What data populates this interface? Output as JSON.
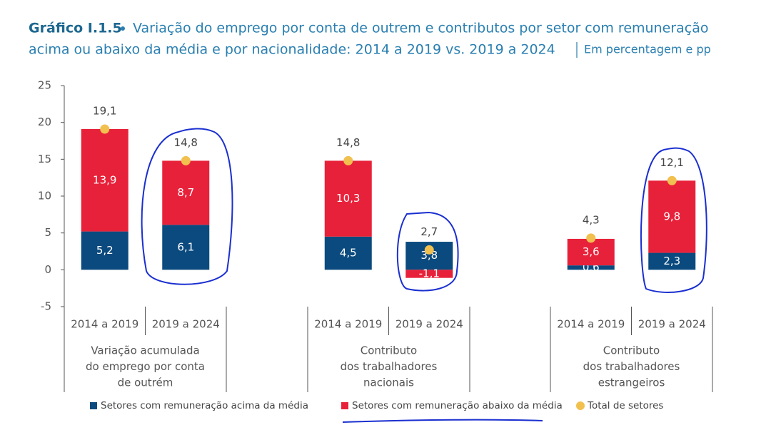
{
  "chart_data": {
    "type": "bar",
    "stacked": true,
    "title_label": "Gráfico I.1.5",
    "title": [
      "Variação do emprego por conta de outrem e contributos por setor com remuneração",
      "acima ou abaixo da média e por nacionalidade: 2014 a 2019 vs. 2019 a 2024"
    ],
    "unit": "Em percentagem e pp",
    "categories": [
      "2014 a 2019",
      "2019 a 2024",
      "2014 a 2019",
      "2019 a 2024",
      "2014 a 2019",
      "2019 a 2024"
    ],
    "groups": [
      {
        "label": [
          "Variação acumulada",
          "do emprego por conta",
          "de outrém"
        ]
      },
      {
        "label": [
          "Contributo",
          "dos trabalhadores",
          "nacionais"
        ]
      },
      {
        "label": [
          "Contributo",
          "dos trabalhadores",
          "estrangeiros"
        ]
      }
    ],
    "series": [
      {
        "name": "Setores com remuneração acima da média",
        "color": "#0b4a7e",
        "values": [
          5.2,
          6.1,
          4.5,
          3.8,
          0.6,
          2.3
        ],
        "value_labels": [
          "5,2",
          "6,1",
          "4,5",
          "3,8",
          "0,6",
          "2,3"
        ]
      },
      {
        "name": "Setores com remuneração abaixo da média",
        "color": "#e8213a",
        "values": [
          13.9,
          8.7,
          10.3,
          -1.1,
          3.6,
          9.8
        ],
        "value_labels": [
          "13,9",
          "8,7",
          "10,3",
          "-1,1",
          "3,6",
          "9,8"
        ]
      },
      {
        "name": "Total de setores",
        "color": "#f1c04f",
        "type": "dot",
        "values": [
          19.1,
          14.8,
          14.8,
          2.7,
          4.3,
          12.1
        ],
        "value_labels": [
          "19,1",
          "14,8",
          "14,8",
          "2,7",
          "4,3",
          "12,1"
        ]
      }
    ],
    "ylim": [
      -5,
      25
    ],
    "yticks": [
      -5,
      0,
      5,
      10,
      15,
      20,
      25
    ]
  }
}
